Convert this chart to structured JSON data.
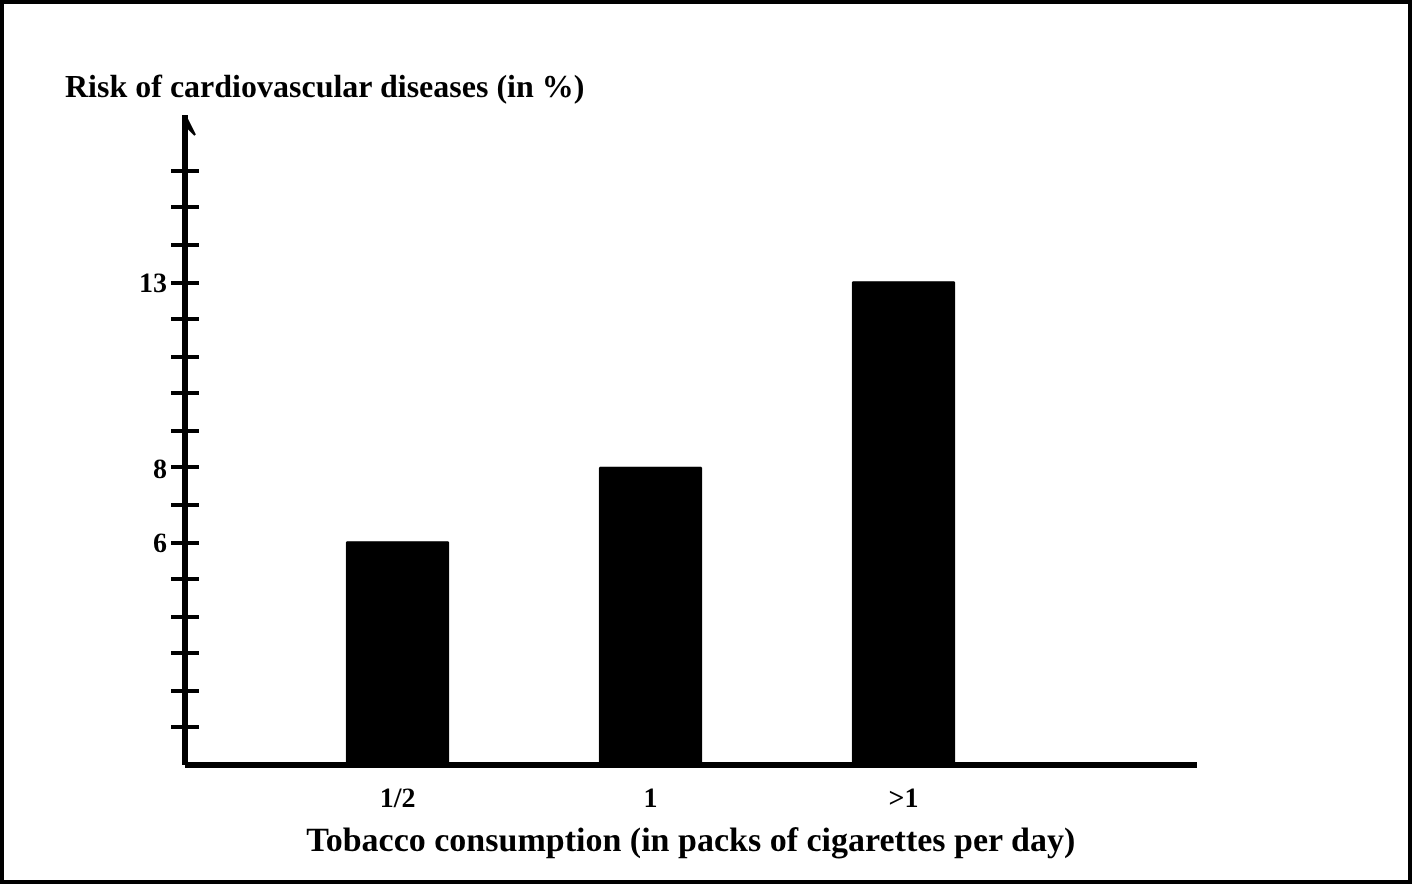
{
  "chart_data": {
    "type": "bar",
    "title": "Risk of cardiovascular diseases (in %)",
    "xlabel": "Tobacco consumption (in packs of cigarettes per day)",
    "categories": [
      "1/2",
      "1",
      ">1"
    ],
    "values": [
      6,
      8,
      13
    ],
    "color": "#000000",
    "ylim": [
      0,
      17.5
    ],
    "yticks": [
      {
        "value": 1,
        "label": null
      },
      {
        "value": 2,
        "label": null
      },
      {
        "value": 3,
        "label": null
      },
      {
        "value": 4,
        "label": null
      },
      {
        "value": 5,
        "label": null
      },
      6,
      {
        "value": 7,
        "label": null
      },
      8,
      {
        "value": 9,
        "label": null
      },
      {
        "value": 10,
        "label": null
      },
      {
        "value": 11,
        "label": null
      },
      {
        "value": 12,
        "label": null
      },
      13,
      {
        "value": 14,
        "label": null
      },
      {
        "value": 15,
        "label": null
      },
      {
        "value": 16,
        "label": null
      }
    ],
    "grid": false
  }
}
